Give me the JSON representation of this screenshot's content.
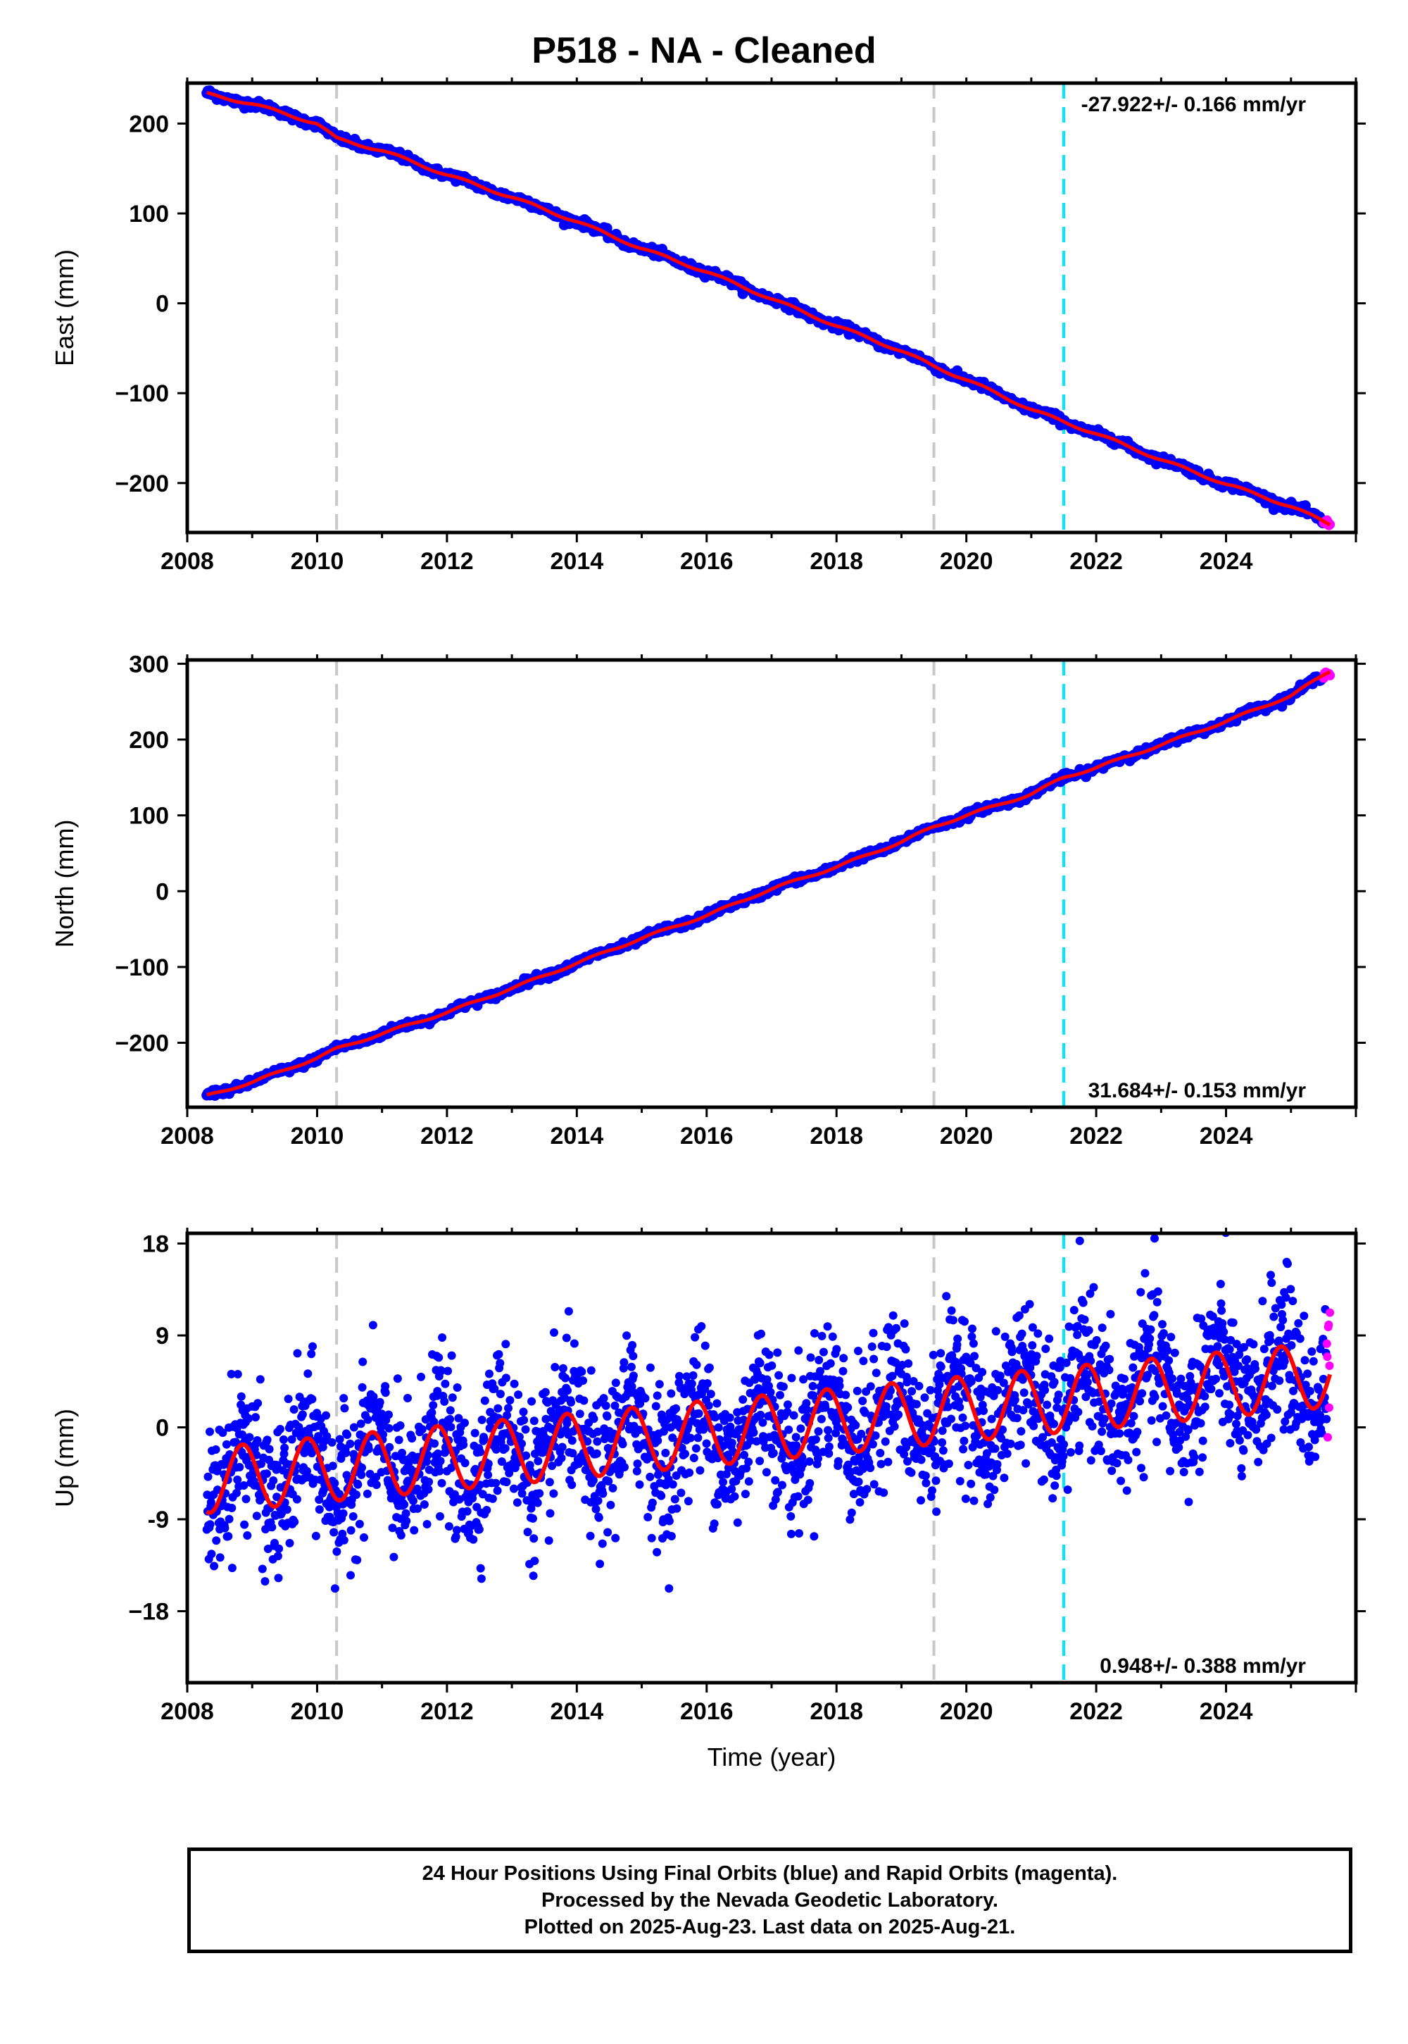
{
  "title": "P518  - NA - Cleaned",
  "footer": {
    "line1": "24 Hour Positions Using Final Orbits (blue) and Rapid Orbits (magenta).",
    "line2": "Processed by the Nevada Geodetic Laboratory.",
    "line3": "Plotted on 2025-Aug-23. Last data on 2025-Aug-21."
  },
  "colors": {
    "final_orbits": "#0000ff",
    "rapid_orbits": "#ff00ff",
    "model_fit": "#ff0000",
    "gray_lines": "#c8c8c8",
    "cyan_line": "#00e8ff"
  },
  "chart_data": [
    {
      "type": "scatter",
      "panel": "east",
      "ylabel": "East (mm)",
      "xlabel": "",
      "xlim": [
        2008.0,
        2026.0
      ],
      "ylim": [
        -255,
        245
      ],
      "xticks": [
        2008,
        2010,
        2012,
        2014,
        2016,
        2018,
        2020,
        2022,
        2024
      ],
      "yticks": [
        200,
        100,
        0,
        -100,
        -200
      ],
      "ytick_labels": [
        "200",
        "100",
        "0",
        "−100",
        "−200"
      ],
      "rate_label": "-27.922+/- 0.166 mm/yr",
      "rate_position": "top-right",
      "gray_dashed_x": [
        2010.3,
        2019.5
      ],
      "cyan_dashed_x": [
        2021.5
      ],
      "series": [
        {
          "trend": "linear",
          "start": [
            2008.3,
            233
          ],
          "end": [
            2025.6,
            -246
          ],
          "points": [
            [
              2008.3,
              233
            ],
            [
              2009.0,
              222
            ],
            [
              2010.0,
              200
            ],
            [
              2010.3,
              183
            ],
            [
              2011.0,
              170
            ],
            [
              2012.0,
              143
            ],
            [
              2013.0,
              118
            ],
            [
              2014.0,
              91
            ],
            [
              2015.0,
              61
            ],
            [
              2016.0,
              35
            ],
            [
              2017.0,
              5
            ],
            [
              2018.0,
              -25
            ],
            [
              2019.0,
              -53
            ],
            [
              2019.5,
              -70
            ],
            [
              2020.0,
              -85
            ],
            [
              2021.0,
              -118
            ],
            [
              2021.5,
              -132
            ],
            [
              2022.0,
              -145
            ],
            [
              2023.0,
              -174
            ],
            [
              2024.0,
              -201
            ],
            [
              2025.0,
              -226
            ],
            [
              2025.6,
              -246
            ]
          ]
        }
      ]
    },
    {
      "type": "scatter",
      "panel": "north",
      "ylabel": "North (mm)",
      "xlabel": "",
      "xlim": [
        2008.0,
        2026.0
      ],
      "ylim": [
        -285,
        305
      ],
      "xticks": [
        2008,
        2010,
        2012,
        2014,
        2016,
        2018,
        2020,
        2022,
        2024
      ],
      "yticks": [
        300,
        200,
        100,
        0,
        -100,
        -200
      ],
      "ytick_labels": [
        "300",
        "200",
        "100",
        "0",
        "−100",
        "−200"
      ],
      "rate_label": "31.684+/- 0.153 mm/yr",
      "rate_position": "bottom-right",
      "gray_dashed_x": [
        2010.3,
        2019.5
      ],
      "cyan_dashed_x": [
        2021.5
      ],
      "series": [
        {
          "trend": "linear",
          "start": [
            2008.3,
            -270
          ],
          "end": [
            2025.6,
            290
          ],
          "points": [
            [
              2008.3,
              -270
            ],
            [
              2009.0,
              -252
            ],
            [
              2010.0,
              -220
            ],
            [
              2010.3,
              -208
            ],
            [
              2011.0,
              -188
            ],
            [
              2012.0,
              -160
            ],
            [
              2013.0,
              -128
            ],
            [
              2014.0,
              -95
            ],
            [
              2015.0,
              -62
            ],
            [
              2016.0,
              -32
            ],
            [
              2017.0,
              3
            ],
            [
              2018.0,
              32
            ],
            [
              2019.0,
              65
            ],
            [
              2019.5,
              85
            ],
            [
              2020.0,
              100
            ],
            [
              2021.0,
              128
            ],
            [
              2021.5,
              150
            ],
            [
              2022.0,
              163
            ],
            [
              2023.0,
              193
            ],
            [
              2024.0,
              224
            ],
            [
              2025.0,
              258
            ],
            [
              2025.6,
              290
            ]
          ]
        }
      ]
    },
    {
      "type": "scatter",
      "panel": "up",
      "ylabel": "Up (mm)",
      "xlabel": "Time (year)",
      "xlim": [
        2008.0,
        2026.0
      ],
      "ylim": [
        -25,
        19
      ],
      "xticks": [
        2008,
        2010,
        2012,
        2014,
        2016,
        2018,
        2020,
        2022,
        2024
      ],
      "yticks": [
        18,
        9,
        0,
        -9,
        -18
      ],
      "ytick_labels": [
        "18",
        "9",
        "0",
        "-9",
        "−18"
      ],
      "rate_label": "0.948+/- 0.388 mm/yr",
      "rate_position": "bottom-right",
      "gray_dashed_x": [
        2010.3,
        2019.5
      ],
      "cyan_dashed_x": [
        2021.5
      ],
      "series": [
        {
          "name": "model",
          "trend": "seasonal",
          "offset": -5.2,
          "rate": 0.6,
          "amplitude": 3.2,
          "phase_year": 0.6,
          "xrange": [
            2008.3,
            2025.6
          ],
          "noise_sd": 3.6
        }
      ]
    }
  ]
}
